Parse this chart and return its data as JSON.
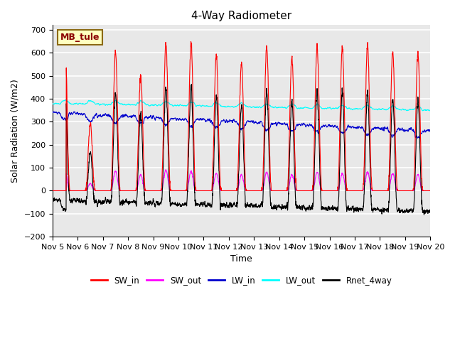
{
  "title": "4-Way Radiometer",
  "xlabel": "Time",
  "ylabel": "Solar Radiation (W/m2)",
  "ylim": [
    -200,
    720
  ],
  "yticks": [
    -200,
    -100,
    0,
    100,
    200,
    300,
    400,
    500,
    600,
    700
  ],
  "annotation": "MB_tule",
  "colors": {
    "SW_in": "#FF0000",
    "SW_out": "#FF00FF",
    "LW_in": "#0000CD",
    "LW_out": "#00FFFF",
    "Rnet_4way": "#000000"
  },
  "x_tick_labels": [
    "Nov 5",
    "Nov 6",
    "Nov 7",
    "Nov 8",
    "Nov 9",
    "Nov 10",
    "Nov 11",
    "Nov 12",
    "Nov 13",
    "Nov 14",
    "Nov 15",
    "Nov 16",
    "Nov 17",
    "Nov 18",
    "Nov 19",
    "Nov 20"
  ],
  "num_days": 15,
  "pts_per_day": 144,
  "plot_bg_color": "#E8E8E8",
  "linewidth": 0.8
}
